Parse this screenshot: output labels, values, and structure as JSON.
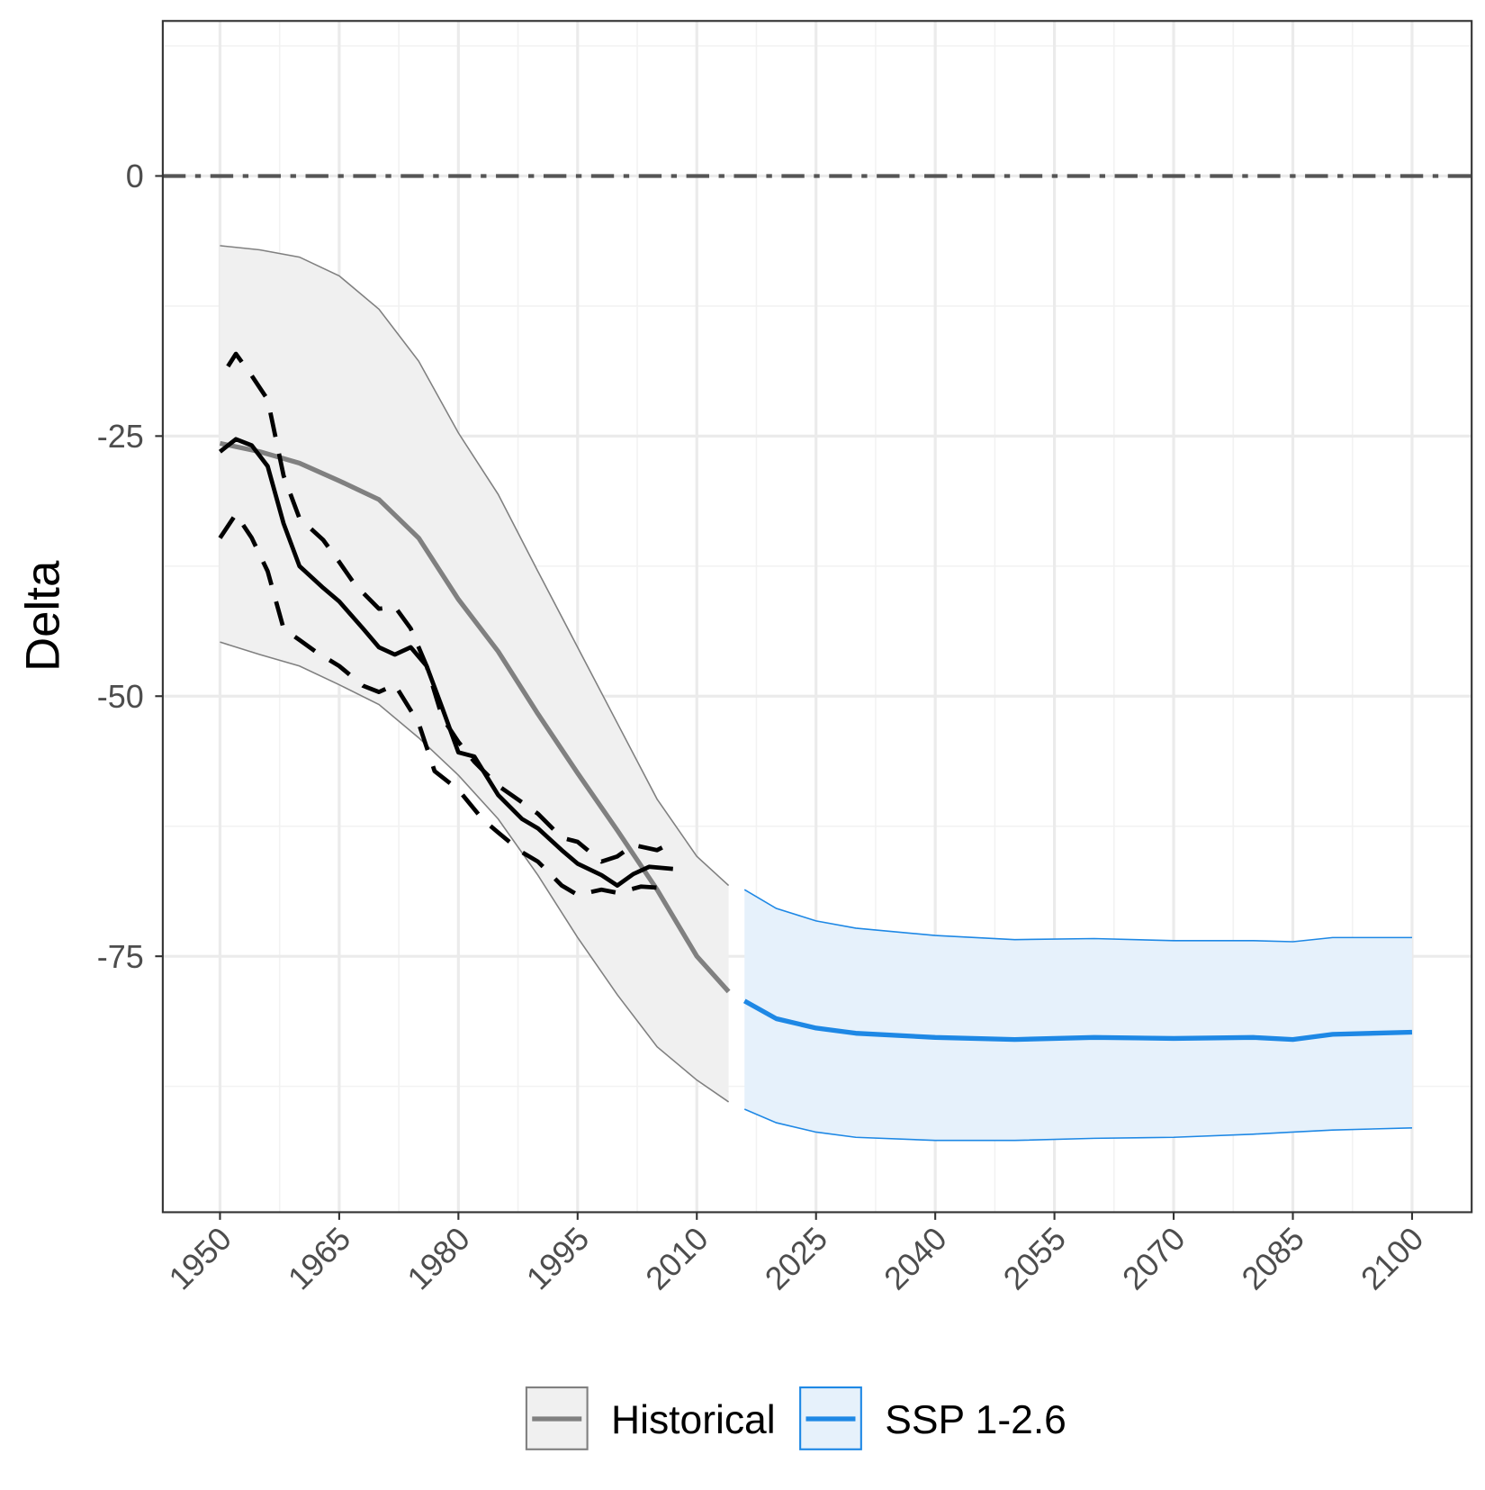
{
  "chart_data": {
    "type": "line",
    "y_label": "Delta",
    "xlim": [
      1942.8,
      2107.5
    ],
    "ylim": [
      -99.6,
      14.9
    ],
    "xticks": [
      1950,
      1965,
      1980,
      1995,
      2010,
      2025,
      2040,
      2055,
      2070,
      2085,
      2100
    ],
    "x_minor_ticks": [
      1957.5,
      1972.5,
      1987.5,
      2002.5,
      2017.5,
      2032.5,
      2047.5,
      2062.5,
      2077.5,
      2092.5
    ],
    "yticks": [
      -75,
      -50,
      -25,
      0
    ],
    "y_minor_ticks": [
      -87.5,
      -62.5,
      -37.5,
      -12.5,
      12.5
    ],
    "grid": true,
    "hline": 0,
    "legend_position": "bottom",
    "series": [
      {
        "name": "Historical",
        "color": "#808080",
        "fill": "#f0f0f0",
        "x": [
          1950,
          1955,
          1960,
          1965,
          1970,
          1975,
          1980,
          1985,
          1990,
          1995,
          2000,
          2005,
          2010,
          2014
        ],
        "values": [
          -25.7,
          -26.5,
          -27.6,
          -29.3,
          -31.1,
          -34.8,
          -40.7,
          -45.7,
          -51.7,
          -57.4,
          -62.9,
          -68.6,
          -75.0,
          -78.4
        ],
        "upper": [
          -6.7,
          -7.1,
          -7.8,
          -9.6,
          -12.8,
          -17.8,
          -24.7,
          -30.6,
          -38.0,
          -45.3,
          -52.6,
          -59.9,
          -65.4,
          -68.2
        ],
        "lower": [
          -44.8,
          -46.0,
          -47.1,
          -48.9,
          -50.8,
          -54.0,
          -57.6,
          -61.8,
          -67.2,
          -73.2,
          -78.7,
          -83.7,
          -86.9,
          -89.0
        ]
      },
      {
        "name": "SSP 1-2.6",
        "color": "#1e88e5",
        "fill": "#e6f1fb",
        "x": [
          2016,
          2020,
          2025,
          2030,
          2040,
          2050,
          2060,
          2070,
          2080,
          2085,
          2090,
          2100
        ],
        "values": [
          -79.3,
          -81.0,
          -81.9,
          -82.4,
          -82.8,
          -83.0,
          -82.8,
          -82.9,
          -82.8,
          -83.0,
          -82.5,
          -82.3
        ],
        "upper": [
          -68.6,
          -70.4,
          -71.6,
          -72.3,
          -73.0,
          -73.4,
          -73.3,
          -73.5,
          -73.5,
          -73.6,
          -73.2,
          -73.2
        ],
        "lower": [
          -89.7,
          -91.0,
          -91.9,
          -92.4,
          -92.7,
          -92.7,
          -92.5,
          -92.4,
          -92.1,
          -91.9,
          -91.7,
          -91.5
        ]
      },
      {
        "color": "#000000",
        "style": "solid",
        "x": [
          1950,
          1952,
          1954,
          1956,
          1958,
          1960,
          1963,
          1965,
          1968,
          1970,
          1972,
          1974,
          1976,
          1978,
          1980,
          1982,
          1985,
          1988,
          1990,
          1993,
          1995,
          1998,
          2000,
          2002,
          2004,
          2007
        ],
        "values": [
          -26.5,
          -25.3,
          -25.9,
          -27.9,
          -33.4,
          -37.5,
          -39.6,
          -40.9,
          -43.5,
          -45.3,
          -46.0,
          -45.3,
          -47.1,
          -51.2,
          -55.4,
          -55.8,
          -59.5,
          -61.8,
          -62.7,
          -64.8,
          -66.1,
          -67.2,
          -68.2,
          -67.1,
          -66.4,
          -66.6
        ]
      },
      {
        "color": "#000000",
        "style": "dashed",
        "x": [
          1951,
          1952,
          1954,
          1956,
          1958,
          1960,
          1963,
          1965,
          1967,
          1970,
          1972,
          1974,
          1976,
          1978,
          1980,
          1982,
          1985,
          1988,
          1990,
          1993,
          1995,
          1998,
          2000,
          2002,
          2005,
          2007
        ],
        "values": [
          -18.3,
          -17.1,
          -19.2,
          -21.5,
          -28.8,
          -32.9,
          -35.0,
          -37.1,
          -39.3,
          -41.6,
          -41.4,
          -43.5,
          -47.1,
          -52.1,
          -54.4,
          -56.3,
          -58.6,
          -60.2,
          -61.3,
          -63.6,
          -64.0,
          -65.9,
          -65.4,
          -64.3,
          -64.8,
          -64.0
        ]
      },
      {
        "color": "#000000",
        "style": "dashed",
        "x": [
          1950,
          1952,
          1954,
          1956,
          1958,
          1960,
          1962,
          1965,
          1968,
          1970,
          1972,
          1975,
          1977,
          1980,
          1983,
          1985,
          1988,
          1990,
          1993,
          1995,
          1998,
          2000,
          2003,
          2005
        ],
        "values": [
          -34.8,
          -32.5,
          -34.8,
          -38.0,
          -43.5,
          -44.6,
          -45.7,
          -47.1,
          -49.0,
          -49.6,
          -48.9,
          -52.6,
          -57.2,
          -59.0,
          -61.8,
          -63.1,
          -65.0,
          -65.9,
          -68.2,
          -69.1,
          -68.6,
          -68.9,
          -68.3,
          -68.4
        ]
      }
    ]
  }
}
